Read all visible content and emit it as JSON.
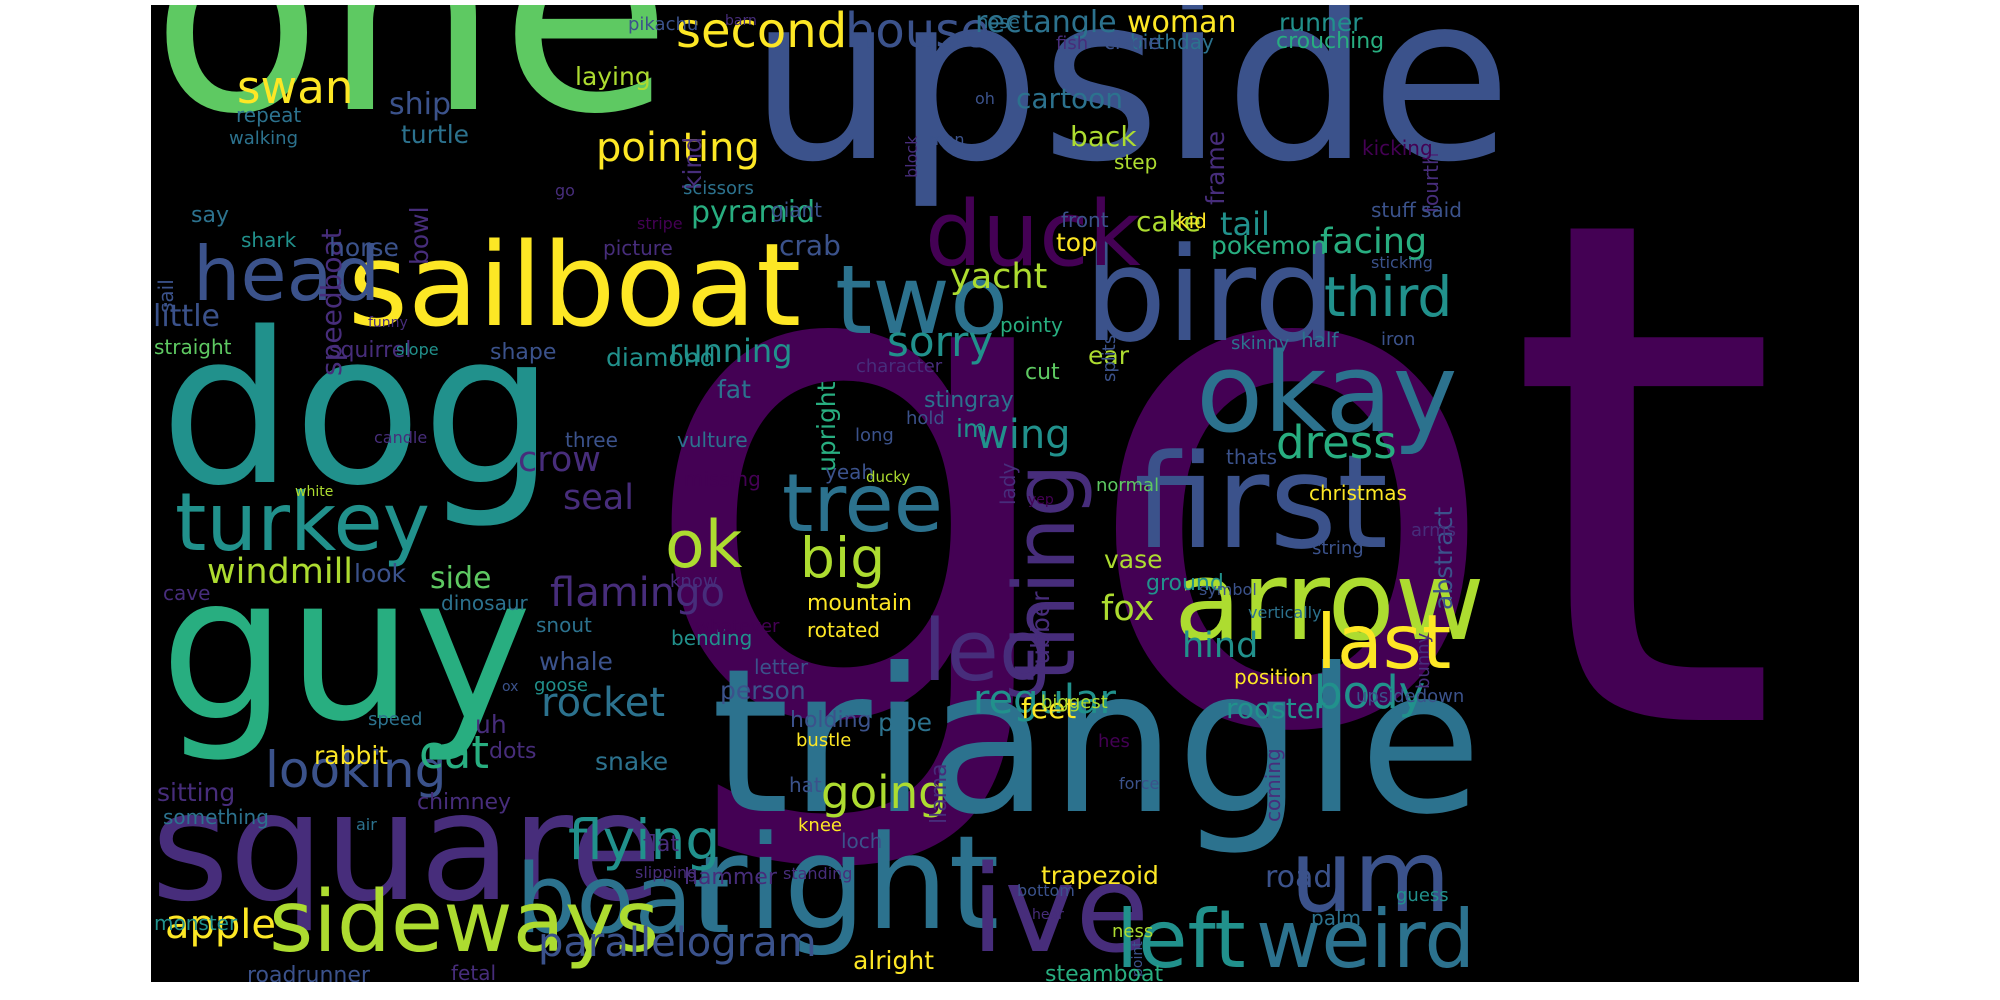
{
  "colors": {
    "background": "#000000",
    "palette": [
      "#440154",
      "#472d7b",
      "#3b528b",
      "#2c728e",
      "#21918c",
      "#28ae80",
      "#5ec962",
      "#addc30",
      "#fde725"
    ]
  },
  "words": [
    {
      "text": "got",
      "color": "#440154"
    },
    {
      "text": "one",
      "color": "#5ec962"
    },
    {
      "text": "upside",
      "color": "#3b528b"
    },
    {
      "text": "triangle",
      "color": "#2c728e"
    },
    {
      "text": "dog",
      "color": "#21918c"
    },
    {
      "text": "guy",
      "color": "#28ae80"
    },
    {
      "text": "square",
      "color": "#472d7b"
    },
    {
      "text": "sailboat",
      "color": "#fde725"
    },
    {
      "text": "bird",
      "color": "#3b528b"
    },
    {
      "text": "first",
      "color": "#3b528b"
    },
    {
      "text": "okay",
      "color": "#2c728e"
    },
    {
      "text": "right",
      "color": "#2c728e"
    },
    {
      "text": "ive",
      "color": "#472d7b"
    },
    {
      "text": "arrow",
      "color": "#addc30"
    },
    {
      "text": "turkey",
      "color": "#21918c"
    },
    {
      "text": "boat",
      "color": "#2c728e"
    },
    {
      "text": "sideways",
      "color": "#addc30"
    },
    {
      "text": "um",
      "color": "#3b528b"
    },
    {
      "text": "left",
      "color": "#21918c"
    },
    {
      "text": "weird",
      "color": "#2c728e"
    },
    {
      "text": "two",
      "color": "#2c728e"
    },
    {
      "text": "head",
      "color": "#3b528b"
    },
    {
      "text": "tree",
      "color": "#2c728e"
    },
    {
      "text": "duck",
      "color": "#440154"
    },
    {
      "text": "last",
      "color": "#fde725"
    },
    {
      "text": "thing",
      "color": "#472d7b"
    },
    {
      "text": "ok",
      "color": "#addc30"
    },
    {
      "text": "leg",
      "color": "#472d7b"
    },
    {
      "text": "second",
      "color": "#fde725"
    },
    {
      "text": "house",
      "color": "#3b528b"
    },
    {
      "text": "swan",
      "color": "#fde725"
    },
    {
      "text": "third",
      "color": "#21918c"
    },
    {
      "text": "dress",
      "color": "#28ae80"
    },
    {
      "text": "sorry",
      "color": "#21918c"
    },
    {
      "text": "big",
      "color": "#addc30"
    },
    {
      "text": "flamingo",
      "color": "#472d7b"
    },
    {
      "text": "body",
      "color": "#21918c"
    },
    {
      "text": "looking",
      "color": "#3b528b"
    },
    {
      "text": "rocket",
      "color": "#2c728e"
    },
    {
      "text": "flying",
      "color": "#21918c"
    },
    {
      "text": "pointing",
      "color": "#fde725"
    },
    {
      "text": "parallelogram",
      "color": "#3b528b"
    },
    {
      "text": "apple",
      "color": "#fde725"
    },
    {
      "text": "cat",
      "color": "#28ae80"
    },
    {
      "text": "wing",
      "color": "#21918c"
    },
    {
      "text": "going",
      "color": "#addc30"
    },
    {
      "text": "regular",
      "color": "#21918c"
    },
    {
      "text": "facing",
      "color": "#28ae80"
    },
    {
      "text": "yacht",
      "color": "#addc30"
    },
    {
      "text": "seal",
      "color": "#472d7b"
    },
    {
      "text": "crow",
      "color": "#472d7b"
    },
    {
      "text": "hind",
      "color": "#21918c"
    },
    {
      "text": "fox",
      "color": "#addc30"
    },
    {
      "text": "windmill",
      "color": "#addc30"
    },
    {
      "text": "speedboat",
      "color": "#472d7b"
    },
    {
      "text": "rectangle",
      "color": "#2c728e"
    },
    {
      "text": "woman",
      "color": "#fde725"
    },
    {
      "text": "ship",
      "color": "#3b528b"
    },
    {
      "text": "running",
      "color": "#21918c"
    },
    {
      "text": "pyramid",
      "color": "#28ae80"
    },
    {
      "text": "cake",
      "color": "#addc30"
    },
    {
      "text": "tail",
      "color": "#21918c"
    },
    {
      "text": "crab",
      "color": "#3b528b"
    },
    {
      "text": "back",
      "color": "#addc30"
    },
    {
      "text": "cartoon",
      "color": "#2c728e"
    },
    {
      "text": "feet",
      "color": "#fde725"
    },
    {
      "text": "rooster",
      "color": "#21918c"
    },
    {
      "text": "little",
      "color": "#3b528b"
    },
    {
      "text": "turtle",
      "color": "#2c728e"
    },
    {
      "text": "laying",
      "color": "#addc30"
    },
    {
      "text": "kind",
      "color": "#472d7b"
    },
    {
      "text": "frame",
      "color": "#472d7b"
    },
    {
      "text": "birthday",
      "color": "#2c728e"
    },
    {
      "text": "runner",
      "color": "#21918c"
    },
    {
      "text": "crouching",
      "color": "#28ae80"
    },
    {
      "text": "fourth",
      "color": "#472d7b"
    },
    {
      "text": "crane",
      "color": "#3b528b"
    },
    {
      "text": "step",
      "color": "#addc30"
    },
    {
      "text": "said",
      "color": "#3b528b"
    },
    {
      "text": "stuff",
      "color": "#3b528b"
    },
    {
      "text": "kicking",
      "color": "#440154"
    },
    {
      "text": "pokemon",
      "color": "#28ae80"
    },
    {
      "text": "kid",
      "color": "#fde725"
    },
    {
      "text": "top",
      "color": "#fde725"
    },
    {
      "text": "front",
      "color": "#3b528b"
    },
    {
      "text": "giant",
      "color": "#3b528b"
    },
    {
      "text": "scissors",
      "color": "#2c728e"
    },
    {
      "text": "picture",
      "color": "#472d7b"
    },
    {
      "text": "shark",
      "color": "#21918c"
    },
    {
      "text": "say",
      "color": "#2c728e"
    },
    {
      "text": "horse",
      "color": "#3b528b"
    },
    {
      "text": "bowl",
      "color": "#472d7b"
    },
    {
      "text": "sail",
      "color": "#3b528b"
    },
    {
      "text": "straight",
      "color": "#5ec962"
    },
    {
      "text": "squirrel",
      "color": "#472d7b"
    },
    {
      "text": "shape",
      "color": "#3b528b"
    },
    {
      "text": "diamond",
      "color": "#21918c"
    },
    {
      "text": "fat",
      "color": "#2c728e"
    },
    {
      "text": "upright",
      "color": "#28ae80"
    },
    {
      "text": "character",
      "color": "#472d7b"
    },
    {
      "text": "pointy",
      "color": "#28ae80"
    },
    {
      "text": "cut",
      "color": "#5ec962"
    },
    {
      "text": "stingray",
      "color": "#2c728e"
    },
    {
      "text": "ear",
      "color": "#addc30"
    },
    {
      "text": "splits",
      "color": "#3b528b"
    },
    {
      "text": "skinny",
      "color": "#2c728e"
    },
    {
      "text": "half",
      "color": "#2c728e"
    },
    {
      "text": "iron",
      "color": "#3b528b"
    },
    {
      "text": "im",
      "color": "#21918c"
    },
    {
      "text": "thats",
      "color": "#3b528b"
    },
    {
      "text": "christmas",
      "color": "#fde725"
    },
    {
      "text": "abstract",
      "color": "#3b528b"
    },
    {
      "text": "vase",
      "color": "#addc30"
    },
    {
      "text": "ground",
      "color": "#21918c"
    },
    {
      "text": "position",
      "color": "#fde725"
    },
    {
      "text": "rubber",
      "color": "#472d7b"
    },
    {
      "text": "lady",
      "color": "#472d7b"
    },
    {
      "text": "mountain",
      "color": "#fde725"
    },
    {
      "text": "rotated",
      "color": "#fde725"
    },
    {
      "text": "bending",
      "color": "#21918c"
    },
    {
      "text": "yeah",
      "color": "#3b528b"
    },
    {
      "text": "missing",
      "color": "#440154"
    },
    {
      "text": "vulture",
      "color": "#2c728e"
    },
    {
      "text": "three",
      "color": "#3b528b"
    },
    {
      "text": "hold",
      "color": "#3b528b"
    },
    {
      "text": "long",
      "color": "#3b528b"
    },
    {
      "text": "ducky",
      "color": "#addc30"
    },
    {
      "text": "normal",
      "color": "#5ec962"
    },
    {
      "text": "arms",
      "color": "#472d7b"
    },
    {
      "text": "string",
      "color": "#3b528b"
    },
    {
      "text": "symbol",
      "color": "#3b528b"
    },
    {
      "text": "vertically",
      "color": "#2c728e"
    },
    {
      "text": "bunny",
      "color": "#472d7b"
    },
    {
      "text": "upsidedown",
      "color": "#3b528b"
    },
    {
      "text": "side",
      "color": "#5ec962"
    },
    {
      "text": "look",
      "color": "#3b528b"
    },
    {
      "text": "cave",
      "color": "#472d7b"
    },
    {
      "text": "know",
      "color": "#472d7b"
    },
    {
      "text": "dinosaur",
      "color": "#2c728e"
    },
    {
      "text": "snout",
      "color": "#2c728e"
    },
    {
      "text": "whatever",
      "color": "#440154"
    },
    {
      "text": "letter",
      "color": "#3b528b"
    },
    {
      "text": "whale",
      "color": "#3b528b"
    },
    {
      "text": "goose",
      "color": "#21918c"
    },
    {
      "text": "ox",
      "color": "#3b528b"
    },
    {
      "text": "person",
      "color": "#3b528b"
    },
    {
      "text": "holding",
      "color": "#3b528b"
    },
    {
      "text": "pipe",
      "color": "#2c728e"
    },
    {
      "text": "uh",
      "color": "#472d7b"
    },
    {
      "text": "dots",
      "color": "#472d7b"
    },
    {
      "text": "rabbit",
      "color": "#fde725"
    },
    {
      "text": "sitting",
      "color": "#472d7b"
    },
    {
      "text": "something",
      "color": "#2c728e"
    },
    {
      "text": "chimney",
      "color": "#472d7b"
    },
    {
      "text": "snake",
      "color": "#2c728e"
    },
    {
      "text": "hat",
      "color": "#3b528b"
    },
    {
      "text": "llama",
      "color": "#472d7b"
    },
    {
      "text": "bustle",
      "color": "#fde725"
    },
    {
      "text": "biggest",
      "color": "#addc30"
    },
    {
      "text": "hes",
      "color": "#440154"
    },
    {
      "text": "force",
      "color": "#3b528b"
    },
    {
      "text": "coming",
      "color": "#472d7b"
    },
    {
      "text": "road",
      "color": "#3b528b"
    },
    {
      "text": "palm",
      "color": "#2c728e"
    },
    {
      "text": "guess",
      "color": "#21918c"
    },
    {
      "text": "trapezoid",
      "color": "#fde725"
    },
    {
      "text": "knee",
      "color": "#fde725"
    },
    {
      "text": "loch",
      "color": "#3b528b"
    },
    {
      "text": "flat",
      "color": "#472d7b"
    },
    {
      "text": "hammer",
      "color": "#472d7b"
    },
    {
      "text": "slipping",
      "color": "#472d7b"
    },
    {
      "text": "standing",
      "color": "#472d7b"
    },
    {
      "text": "bottom",
      "color": "#3b528b"
    },
    {
      "text": "hear",
      "color": "#472d7b"
    },
    {
      "text": "ness",
      "color": "#addc30"
    },
    {
      "text": "point",
      "color": "#3b528b"
    },
    {
      "text": "alright",
      "color": "#fde725"
    },
    {
      "text": "steamboat",
      "color": "#28ae80"
    },
    {
      "text": "monster",
      "color": "#21918c"
    },
    {
      "text": "fetal",
      "color": "#472d7b"
    },
    {
      "text": "roadrunner",
      "color": "#3b528b"
    },
    {
      "text": "speed",
      "color": "#2c728e"
    },
    {
      "text": "air",
      "color": "#2c728e"
    },
    {
      "text": "candle",
      "color": "#472d7b"
    },
    {
      "text": "white",
      "color": "#addc30"
    },
    {
      "text": "funny",
      "color": "#472d7b"
    },
    {
      "text": "slope",
      "color": "#21918c"
    },
    {
      "text": "repeat",
      "color": "#2c728e"
    },
    {
      "text": "walking",
      "color": "#2c728e"
    },
    {
      "text": "pikachu",
      "color": "#3b528b"
    },
    {
      "text": "barn",
      "color": "#472d7b"
    },
    {
      "text": "nose",
      "color": "#2c728e"
    },
    {
      "text": "fish",
      "color": "#472d7b"
    },
    {
      "text": "oh",
      "color": "#3b528b"
    },
    {
      "text": "man",
      "color": "#3b528b"
    },
    {
      "text": "block",
      "color": "#472d7b"
    },
    {
      "text": "go",
      "color": "#472d7b"
    },
    {
      "text": "stripe",
      "color": "#440154"
    },
    {
      "text": "sticking",
      "color": "#3b528b"
    },
    {
      "text": "yep",
      "color": "#440154"
    }
  ]
}
